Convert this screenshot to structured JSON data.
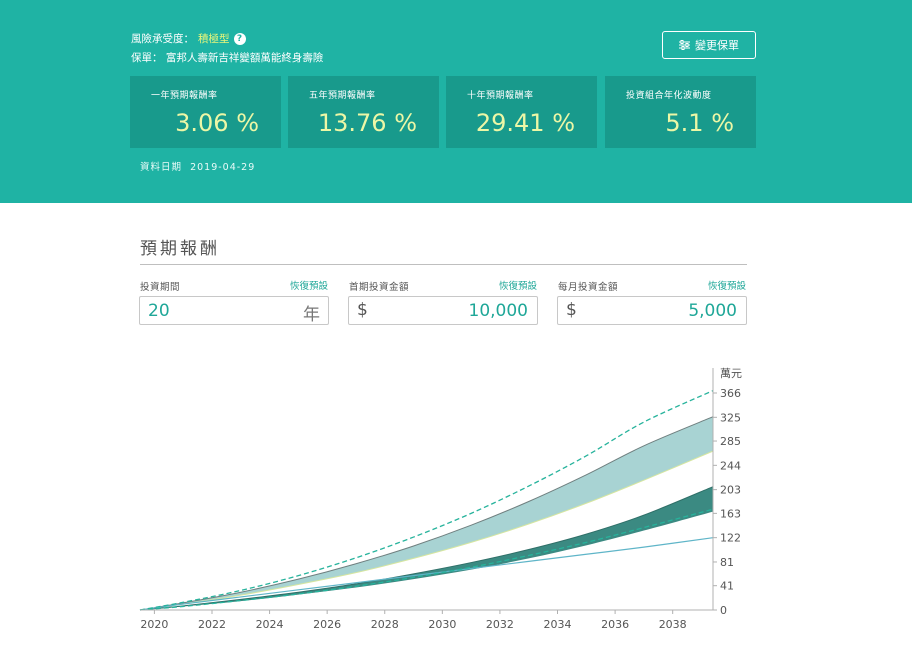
{
  "header": {
    "risk_label": "風險承受度：",
    "risk_value": "積極型",
    "help_icon": "?",
    "policy_label": "保單：",
    "policy_name": "富邦人壽新吉祥變額萬能終身壽險",
    "change_button": "變更保單",
    "data_date_label": "資料日期",
    "data_date": "2019-04-29"
  },
  "stats": [
    {
      "label": "一年預期報酬率",
      "value": "3.06 %"
    },
    {
      "label": "五年預期報酬率",
      "value": "13.76 %"
    },
    {
      "label": "十年預期報酬率",
      "value": "29.41 %"
    },
    {
      "label": "投資組合年化波動度",
      "value": "5.1 %"
    }
  ],
  "section": {
    "title": "預期報酬"
  },
  "inputs": {
    "period": {
      "label": "投資期間",
      "reset": "恢復預設",
      "value": "20",
      "unit": "年"
    },
    "initial": {
      "label": "首期投資金額",
      "reset": "恢復預設",
      "currency": "$",
      "value": "10,000"
    },
    "monthly": {
      "label": "每月投資金額",
      "reset": "恢復預設",
      "currency": "$",
      "value": "5,000"
    }
  },
  "colors": {
    "hero": "#1fb3a4",
    "card": "#189a8c",
    "accent_text": "#ecf7a6",
    "teal_link": "#1fa798",
    "upper_band": "#a8d3d3",
    "lower_band": "#3b8a82",
    "dashed_line": "#27b39c",
    "principal_line": "#5fb5c8"
  },
  "chart_data": {
    "type": "area",
    "y_unit": "萬元",
    "x_ticks": [
      2020,
      2022,
      2024,
      2026,
      2028,
      2030,
      2032,
      2034,
      2036,
      2038
    ],
    "y_ticks": [
      0,
      41,
      81,
      122,
      163,
      203,
      244,
      285,
      325,
      366
    ],
    "xlim": [
      2019.5,
      2039.4
    ],
    "ylim": [
      0,
      366
    ],
    "grid": false,
    "x": [
      2019.5,
      2021,
      2023,
      2025,
      2027,
      2029,
      2031,
      2033,
      2035,
      2037,
      2039.4
    ],
    "series": [
      {
        "name": "",
        "role": "upper_band_top",
        "values": [
          0,
          12,
          30,
          52,
          78,
          108,
          143,
          183,
          228,
          277,
          326
        ]
      },
      {
        "name": "",
        "role": "upper_band_bottom",
        "values": [
          0,
          10,
          25,
          43,
          63,
          87,
          114,
          145,
          180,
          219,
          268
        ]
      },
      {
        "name": "",
        "role": "lower_band_top",
        "values": [
          0,
          7,
          18,
          30,
          44,
          61,
          80,
          102,
          128,
          160,
          208
        ]
      },
      {
        "name": "",
        "role": "lower_band_bottom",
        "values": [
          0,
          6,
          15,
          26,
          38,
          52,
          68,
          87,
          109,
          134,
          166
        ]
      },
      {
        "name": "",
        "role": "dashed_high",
        "values": [
          0,
          13,
          33,
          58,
          88,
          123,
          163,
          209,
          260,
          317,
          370
        ]
      },
      {
        "name": "",
        "role": "dashed_low",
        "values": [
          0,
          6,
          16,
          27,
          40,
          55,
          72,
          92,
          114,
          139,
          170
        ]
      },
      {
        "name": "",
        "role": "principal",
        "values": [
          0,
          10,
          22,
          34,
          46,
          58,
          70,
          82,
          94,
          106,
          122
        ]
      }
    ]
  }
}
